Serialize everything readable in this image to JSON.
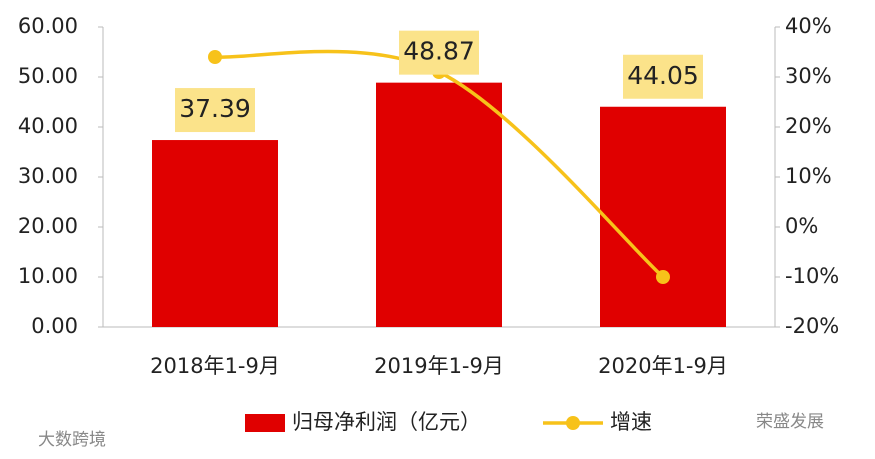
{
  "chart_data": {
    "type": "bar_line",
    "categories": [
      "2018年1-9月",
      "2019年1-9月",
      "2020年1-9月"
    ],
    "series": [
      {
        "name": "归母净利润（亿元）",
        "color": "#e00000",
        "type": "bar",
        "values": [
          37.39,
          48.87,
          44.05
        ]
      },
      {
        "name": "增速",
        "color": "#f7c21a",
        "type": "line",
        "axis": "y2",
        "values": [
          34,
          31,
          -10
        ]
      }
    ],
    "ylim": [
      0,
      60
    ],
    "yticks": [
      {
        "value": 0,
        "label": "0.00"
      },
      {
        "value": 10,
        "label": "10.00"
      },
      {
        "value": 20,
        "label": "20.00"
      },
      {
        "value": 30,
        "label": "30.00"
      },
      {
        "value": 40,
        "label": "40.00"
      },
      {
        "value": 50,
        "label": "50.00"
      },
      {
        "value": 60,
        "label": "60.00"
      }
    ],
    "y2lim": [
      -20,
      40
    ],
    "y2ticks": [
      {
        "value": -20,
        "label": "-20%"
      },
      {
        "value": -10,
        "label": "-10%"
      },
      {
        "value": 0,
        "label": "0%"
      },
      {
        "value": 10,
        "label": "10%"
      },
      {
        "value": 20,
        "label": "20%"
      },
      {
        "value": 30,
        "label": "30%"
      },
      {
        "value": 40,
        "label": "40%"
      }
    ],
    "label_box_color": "#fbe38a",
    "annotations": [
      "荣盛发展",
      "大数跨境"
    ]
  }
}
